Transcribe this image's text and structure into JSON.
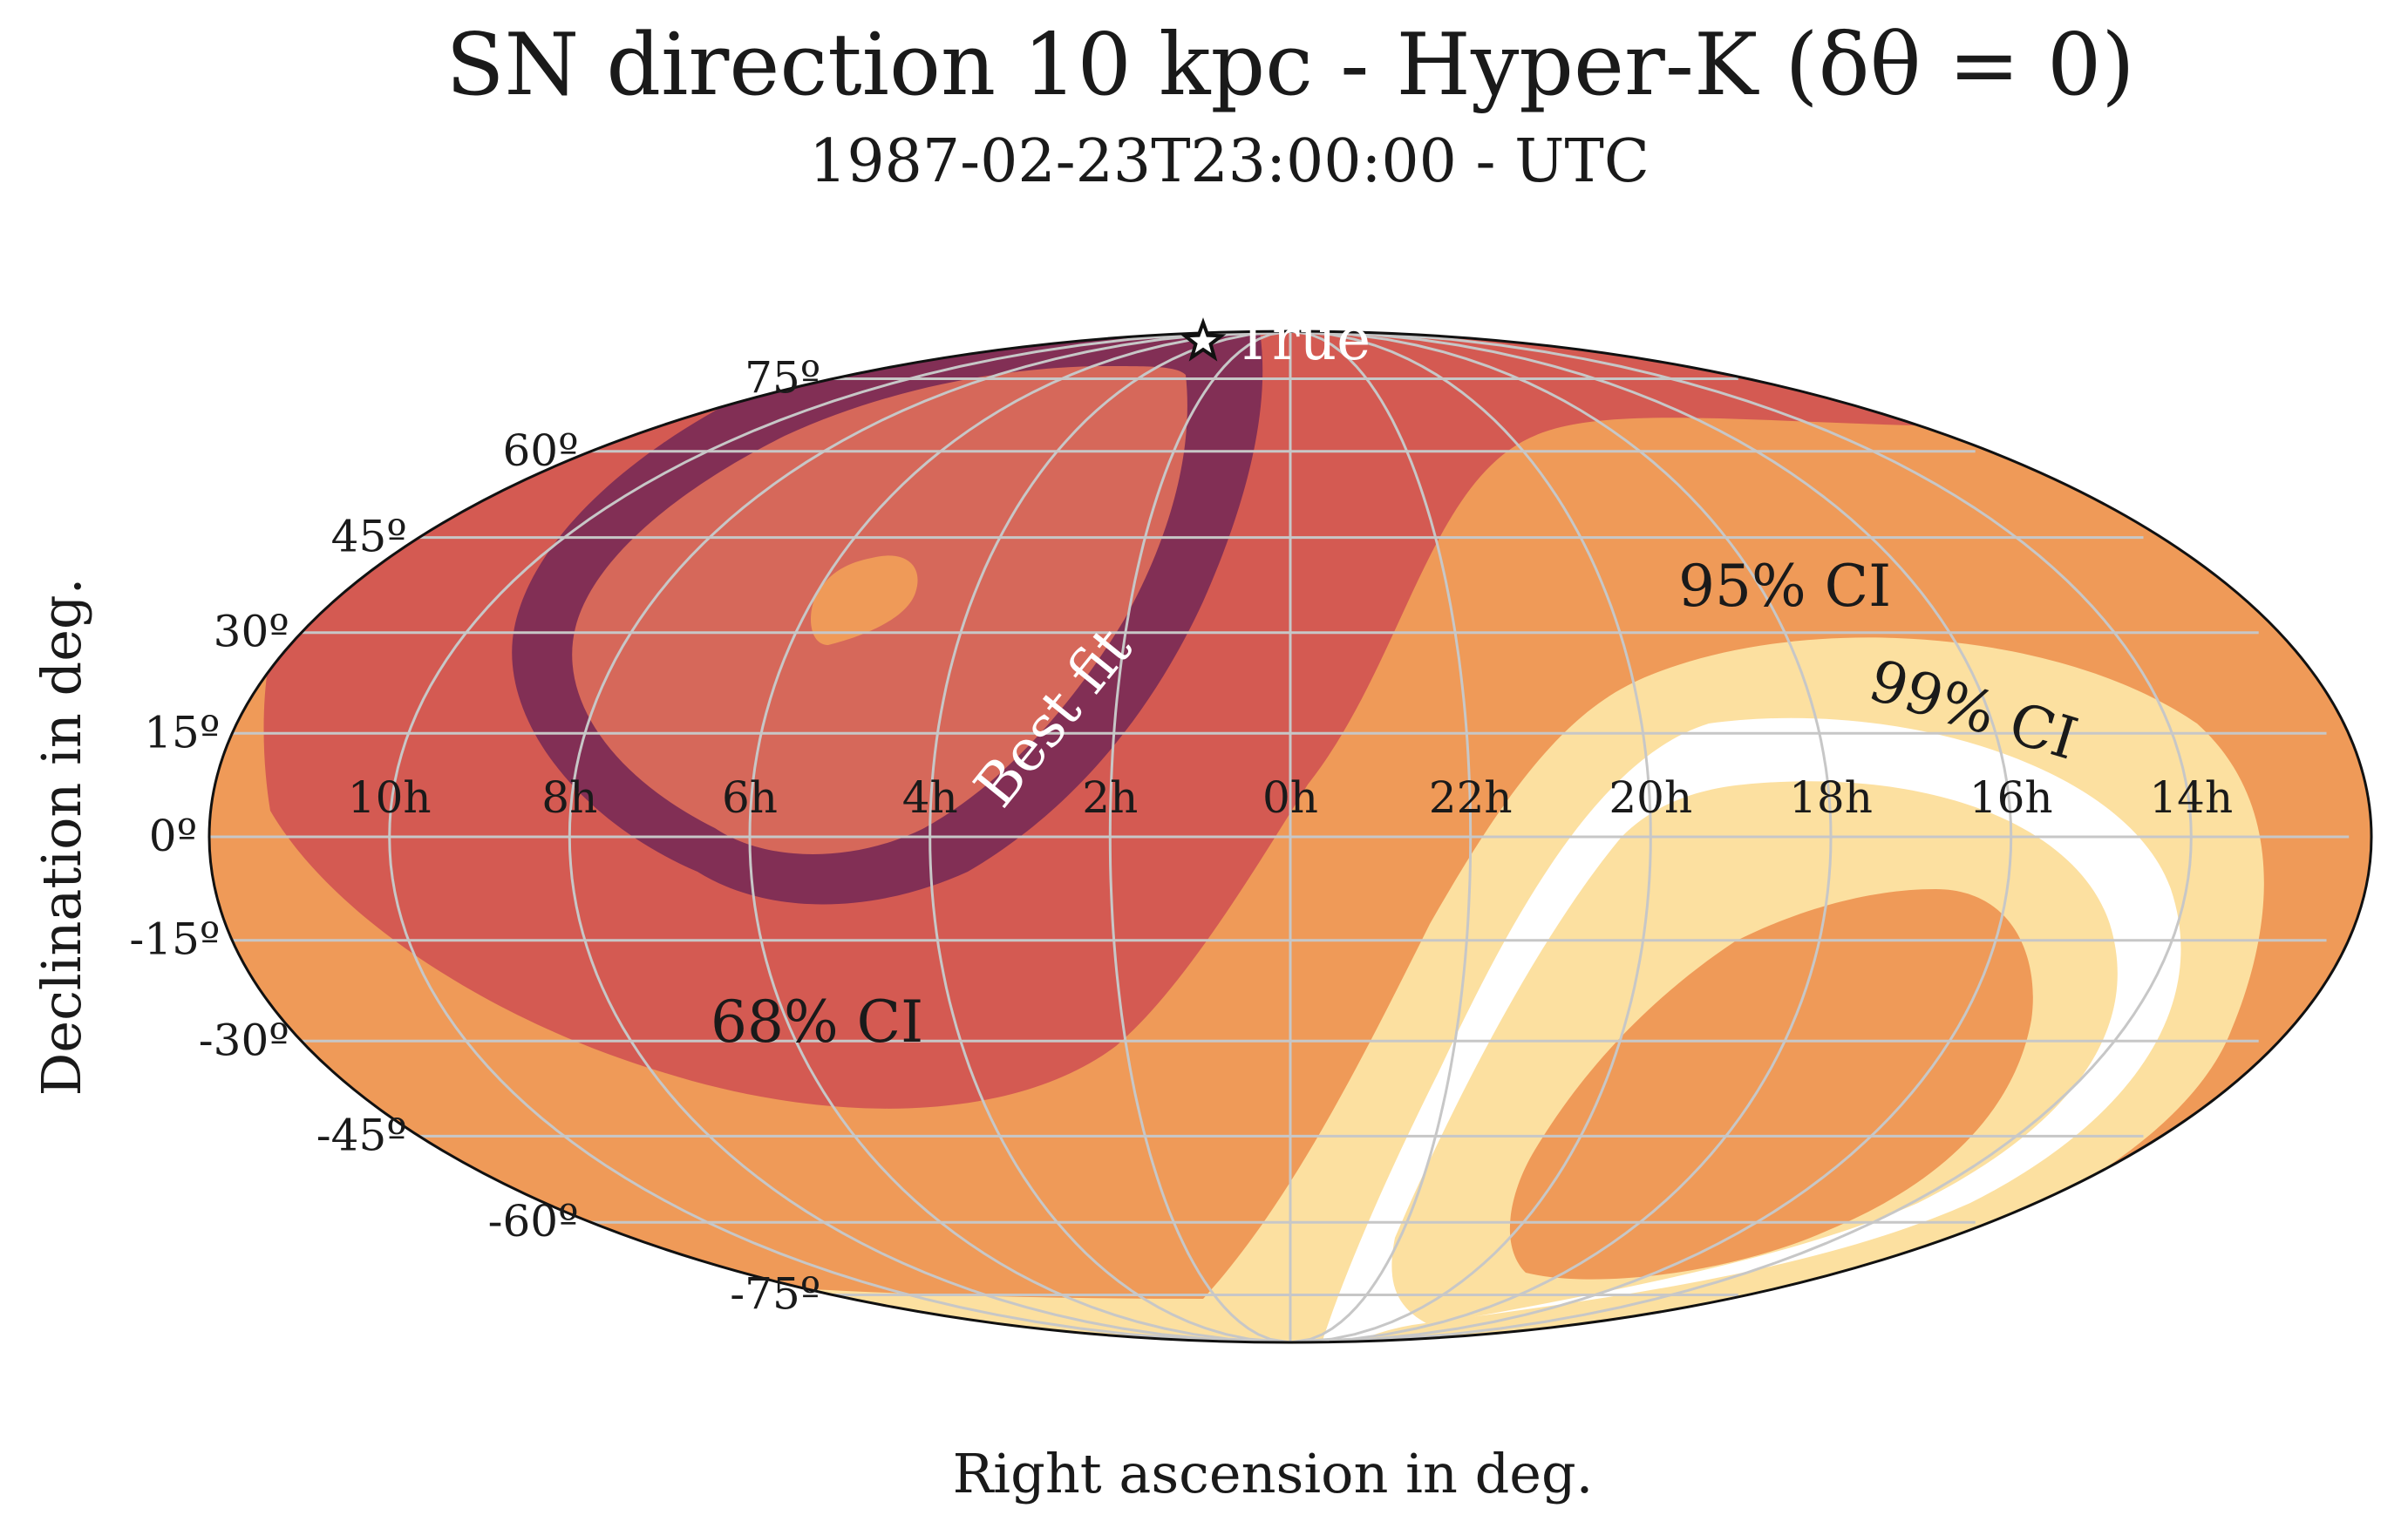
{
  "chart_data": {
    "type": "heatmap",
    "projection": "mollweide",
    "title": "SN direction 10 kpc - Hyper-K (δθ = 0)",
    "subtitle": "1987-02-23T23:00:00 - UTC",
    "xlabel": "Right ascension in deg.",
    "ylabel": "Declination in deg.",
    "ra_tick_labels": [
      "10h",
      "8h",
      "6h",
      "4h",
      "2h",
      "0h",
      "22h",
      "20h",
      "18h",
      "16h",
      "14h"
    ],
    "ra_tick_values_h": [
      10,
      8,
      6,
      4,
      2,
      0,
      22,
      20,
      18,
      16,
      14
    ],
    "dec_tick_labels": [
      "75º",
      "60º",
      "45º",
      "30º",
      "15º",
      "0º",
      "-15º",
      "-30º",
      "-45º",
      "-60º",
      "-75º"
    ],
    "dec_tick_values_deg": [
      75,
      60,
      45,
      30,
      15,
      0,
      -15,
      -30,
      -45,
      -60,
      -75
    ],
    "grid": true,
    "regions": [
      {
        "label": "68% CI",
        "color": "#d45a52"
      },
      {
        "label": "95% CI",
        "color": "#ef9a58"
      },
      {
        "label": "99% CI",
        "color": "#fce0a0"
      }
    ],
    "outside_color": "#ffffff",
    "best_fit_label": "Best fit",
    "best_fit_color": "#822f55",
    "inner_fill_color": "#d6685a",
    "true_marker": {
      "label": "True",
      "ra_h": 1,
      "dec_deg": 72
    },
    "annotations": [
      "68% CI",
      "95% CI",
      "99% CI",
      "Best fit"
    ]
  }
}
